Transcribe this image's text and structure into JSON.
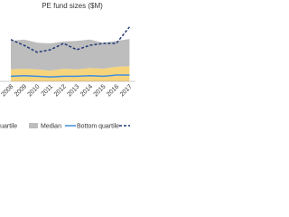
{
  "chart_data": {
    "type": "area",
    "title": "PE fund sizes ($M)",
    "categories": [
      "2008",
      "2009",
      "2010",
      "2011",
      "2012",
      "2013",
      "2014",
      "2015",
      "2016",
      "2017"
    ],
    "ylim": [
      0,
      100
    ],
    "series": [
      {
        "name": "Top quartile",
        "kind": "area",
        "color": "#f6d47c",
        "values": [
          19,
          20,
          19,
          17,
          20,
          19,
          21,
          20,
          23,
          24
        ]
      },
      {
        "name": "Median",
        "kind": "area",
        "color": "#bdbdbd",
        "values": [
          45,
          46,
          42,
          43,
          43,
          45,
          45,
          41,
          41,
          43
        ]
      },
      {
        "name": "Bottom quartile",
        "kind": "line",
        "color": "#3e8ede",
        "values": [
          8,
          9,
          8,
          7,
          8,
          8,
          9,
          8,
          10,
          10
        ]
      },
      {
        "kind": "dashed",
        "color": "#1f3a78",
        "values": [
          66,
          57,
          46,
          50,
          60,
          50,
          57,
          60,
          60,
          86
        ]
      }
    ]
  }
}
